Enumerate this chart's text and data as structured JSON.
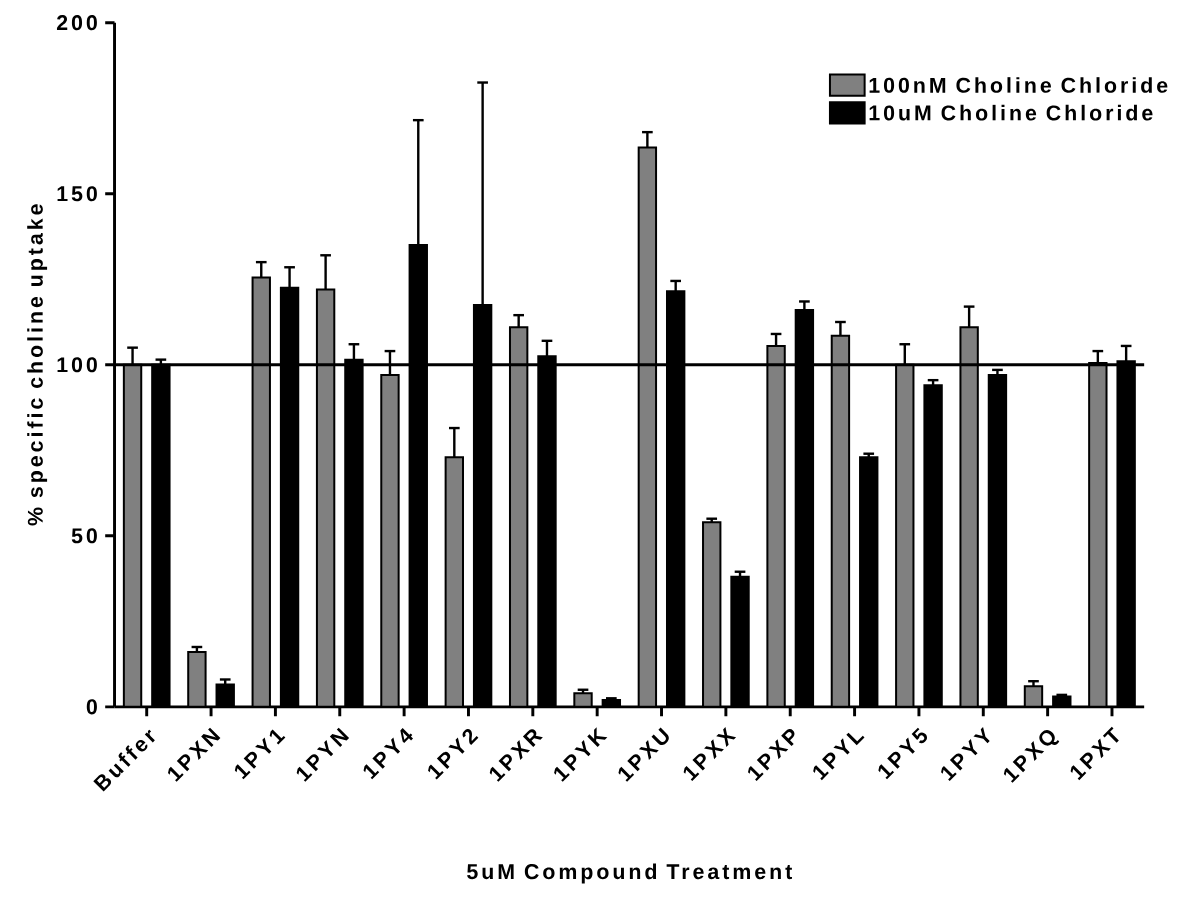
{
  "chart_data": {
    "type": "bar",
    "xlabel": "5uM Compound Treatment",
    "ylabel": "% specific choline uptake",
    "categories": [
      "Buffer",
      "1PXN",
      "1PY1",
      "1PYN",
      "1PY4",
      "1PY2",
      "1PXR",
      "1PYK",
      "1PXU",
      "1PXX",
      "1PXP",
      "1PYL",
      "1PY5",
      "1PYY",
      "1PXQ",
      "1PXT"
    ],
    "series": [
      {
        "name": "100nM Choline  Chloride",
        "color": "#808080",
        "values": [
          100,
          16,
          125.5,
          122,
          97,
          73,
          111,
          4,
          163.5,
          54,
          105.5,
          108.5,
          100,
          111,
          6,
          100.5
        ],
        "errors": [
          [
            100,
            105
          ],
          [
            16,
            17.5
          ],
          [
            125.5,
            130
          ],
          [
            122,
            132
          ],
          [
            97,
            104
          ],
          [
            73,
            81.5
          ],
          [
            111,
            114.5
          ],
          [
            4,
            5
          ],
          [
            163.5,
            168
          ],
          [
            54,
            55
          ],
          [
            105.5,
            109
          ],
          [
            108.5,
            112.5
          ],
          [
            100,
            106
          ],
          [
            111,
            117
          ],
          [
            6,
            7.5
          ],
          [
            100.5,
            104
          ]
        ]
      },
      {
        "name": "10uM Choline Chloride",
        "color": "#000000",
        "values": [
          100,
          6.5,
          122.5,
          101.5,
          135,
          117.5,
          102.5,
          2,
          121.5,
          38,
          116,
          73,
          94,
          97,
          3,
          101
        ],
        "errors": [
          [
            100,
            101.5
          ],
          [
            6.5,
            8
          ],
          [
            122.5,
            128.5
          ],
          [
            101.5,
            106
          ],
          [
            135,
            171.5
          ],
          [
            117.5,
            182.5
          ],
          [
            102.5,
            107
          ],
          [
            2,
            2.5
          ],
          [
            121.5,
            124.5
          ],
          [
            38,
            39.5
          ],
          [
            116,
            118.5
          ],
          [
            73,
            74
          ],
          [
            94,
            95.5
          ],
          [
            97,
            98.5
          ],
          [
            3,
            3.5
          ],
          [
            101,
            105.5
          ]
        ]
      }
    ],
    "ylim": [
      0,
      200
    ],
    "yticks": [
      0,
      50,
      100,
      150,
      200
    ],
    "ref_lines": [
      {
        "axis": "y",
        "value": 100,
        "color": "#000000"
      }
    ],
    "legend": "top right",
    "grid": false
  }
}
